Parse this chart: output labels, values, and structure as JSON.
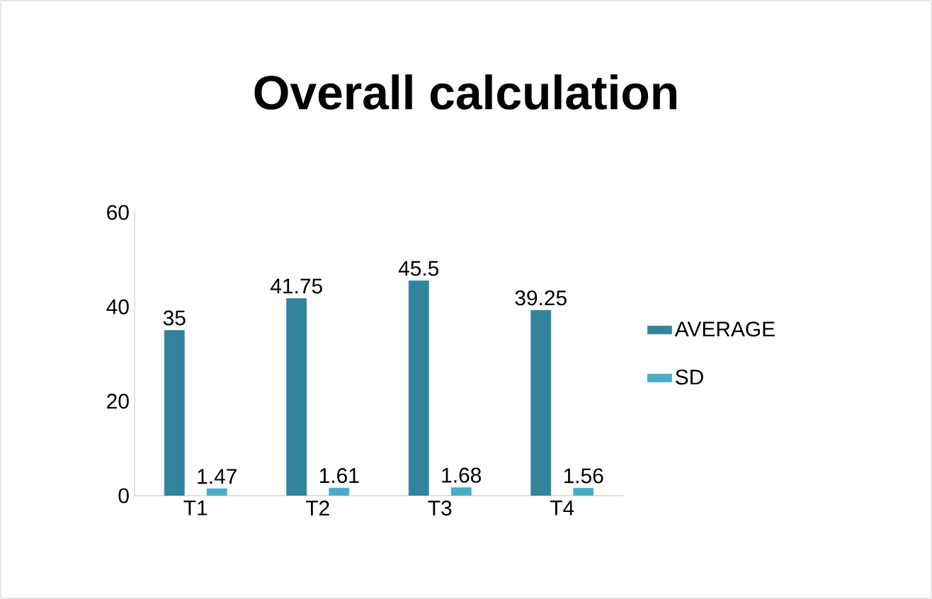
{
  "chart_data": {
    "type": "bar",
    "title": "Overall calculation",
    "categories": [
      "T1",
      "T2",
      "T3",
      "T4"
    ],
    "series": [
      {
        "name": "AVERAGE",
        "color": "#31849b",
        "values": [
          35,
          41.75,
          45.5,
          39.25
        ]
      },
      {
        "name": "SD",
        "color": "#4bacc6",
        "values": [
          1.47,
          1.61,
          1.68,
          1.56
        ]
      }
    ],
    "ylim": [
      0,
      60
    ],
    "yticks": [
      0,
      20,
      40,
      60
    ],
    "data_labels": true,
    "grid": false,
    "legend": "right"
  }
}
